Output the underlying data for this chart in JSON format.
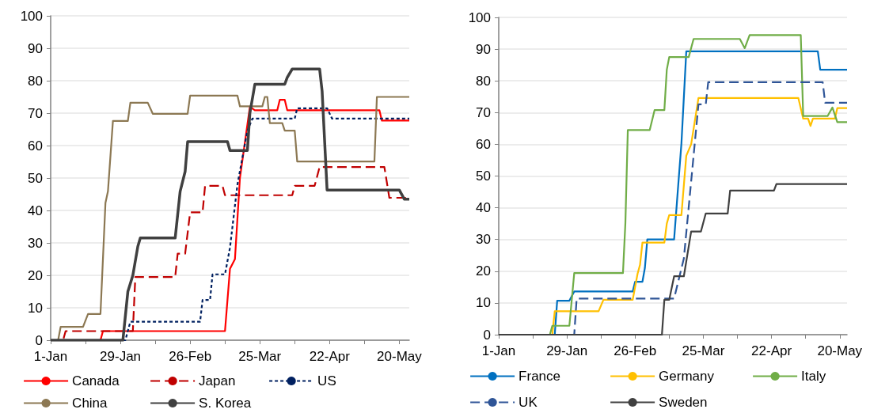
{
  "chart_data": [
    {
      "type": "line",
      "xlim": [
        "--01-01",
        "--05-24"
      ],
      "ylim": [
        0,
        100
      ],
      "xticks": [
        {
          "value": "--01-01",
          "label": "1-Jan"
        },
        {
          "value": "--01-15",
          "label": null
        },
        {
          "value": "--01-29",
          "label": "29-Jan"
        },
        {
          "value": "--02-12",
          "label": null
        },
        {
          "value": "--02-26",
          "label": "26-Feb"
        },
        {
          "value": "--03-11",
          "label": null
        },
        {
          "value": "--03-25",
          "label": "25-Mar"
        },
        {
          "value": "--04-08",
          "label": null
        },
        {
          "value": "--04-22",
          "label": "22-Apr"
        },
        {
          "value": "--05-06",
          "label": null
        },
        {
          "value": "--05-20",
          "label": "20-May"
        }
      ],
      "yticks": [
        0,
        10,
        20,
        30,
        40,
        50,
        60,
        70,
        80,
        90,
        100
      ],
      "grid": "y",
      "legend": "bottom",
      "marker": "none",
      "series": [
        {
          "name": "Canada",
          "color": "#ff0000",
          "line_style": "solid",
          "x": [
            "--01-01",
            "--01-21",
            "--01-22",
            "--03-11",
            "--03-13",
            "--03-15",
            "--03-17",
            "--03-19",
            "--03-21",
            "--03-23",
            "--04-01",
            "--04-02",
            "--04-04",
            "--04-05",
            "--05-12",
            "--05-13",
            "--05-24"
          ],
          "values": [
            0,
            0,
            2.8,
            2.8,
            22,
            25,
            50,
            61,
            72,
            70.9,
            70.9,
            74.1,
            74.1,
            70.9,
            70.9,
            67.7,
            67.7
          ]
        },
        {
          "name": "Japan",
          "color": "#c00000",
          "line_style": "dashed",
          "x": [
            "--01-01",
            "--01-06",
            "--01-07",
            "--02-03",
            "--02-04",
            "--02-20",
            "--02-21",
            "--02-24",
            "--02-26",
            "--03-02",
            "--03-03",
            "--03-10",
            "--03-11",
            "--04-07",
            "--04-08",
            "--04-16",
            "--04-18",
            "--05-14",
            "--05-16",
            "--05-24"
          ],
          "values": [
            0,
            0,
            2.8,
            2.8,
            19.5,
            19.5,
            26.7,
            26.7,
            39.4,
            39.4,
            47.6,
            47.6,
            44.7,
            44.7,
            47.6,
            47.6,
            53.4,
            53.4,
            43.9,
            43.9
          ]
        },
        {
          "name": "US",
          "color": "#002060",
          "line_style": "dotted",
          "x": [
            "--01-01",
            "--01-31",
            "--02-02",
            "--03-01",
            "--03-02",
            "--03-05",
            "--03-06",
            "--03-11",
            "--03-13",
            "--03-16",
            "--03-20",
            "--03-22",
            "--04-08",
            "--04-09",
            "--04-21",
            "--04-23",
            "--05-24"
          ],
          "values": [
            0,
            0,
            5.7,
            5.7,
            12.4,
            12.4,
            20.3,
            20.3,
            28.5,
            48,
            64.6,
            68.3,
            68.3,
            71.5,
            71.5,
            68.3,
            68.3
          ]
        },
        {
          "name": "China",
          "color": "#8c7853",
          "line_style": "solid",
          "x": [
            "--01-01",
            "--01-04",
            "--01-05",
            "--01-14",
            "--01-16",
            "--01-21",
            "--01-23",
            "--01-24",
            "--01-26",
            "--02-01",
            "--02-02",
            "--02-09",
            "--02-11",
            "--02-25",
            "--02-26",
            "--03-16",
            "--03-17",
            "--03-26",
            "--03-27",
            "--03-28",
            "--03-29",
            "--04-03",
            "--04-04",
            "--04-08",
            "--04-09",
            "--05-10",
            "--05-11",
            "--05-24"
          ],
          "values": [
            0,
            0,
            4.1,
            4.1,
            8.1,
            8.1,
            42.3,
            45.9,
            67.6,
            67.6,
            73.2,
            73.2,
            69.8,
            69.8,
            75.4,
            75.4,
            72.1,
            72.1,
            75,
            75,
            66.9,
            66.9,
            64.6,
            64.6,
            55.1,
            55.1,
            75,
            75
          ]
        },
        {
          "name": "S. Korea",
          "color": "#404040",
          "line_style": "solid",
          "x": [
            "--01-01",
            "--01-30",
            "--02-01",
            "--02-03",
            "--02-05",
            "--02-06",
            "--02-20",
            "--02-22",
            "--02-24",
            "--02-25",
            "--03-12",
            "--03-13",
            "--03-20",
            "--03-21",
            "--03-23",
            "--04-04",
            "--04-05",
            "--04-07",
            "--04-18",
            "--04-19",
            "--04-21",
            "--05-20",
            "--05-22",
            "--05-24"
          ],
          "values": [
            0,
            0,
            15,
            20,
            28.9,
            31.5,
            31.5,
            45.9,
            52,
            61.2,
            61.2,
            58.5,
            58.5,
            70,
            78.9,
            78.9,
            81,
            83.6,
            83.6,
            76.8,
            46.3,
            46.3,
            43.5,
            43.5
          ]
        }
      ]
    },
    {
      "type": "line",
      "xlim": [
        "--01-01",
        "--05-23"
      ],
      "ylim": [
        0,
        100
      ],
      "xticks": [
        {
          "value": "--01-01",
          "label": "1-Jan"
        },
        {
          "value": "--01-15",
          "label": null
        },
        {
          "value": "--01-29",
          "label": "29-Jan"
        },
        {
          "value": "--02-12",
          "label": null
        },
        {
          "value": "--02-26",
          "label": "26-Feb"
        },
        {
          "value": "--03-11",
          "label": null
        },
        {
          "value": "--03-25",
          "label": "25-Mar"
        },
        {
          "value": "--04-08",
          "label": null
        },
        {
          "value": "--04-22",
          "label": "22-Apr"
        },
        {
          "value": "--05-06",
          "label": null
        },
        {
          "value": "--05-20",
          "label": "20-May"
        }
      ],
      "yticks": [
        0,
        10,
        20,
        30,
        40,
        50,
        60,
        70,
        80,
        90,
        100
      ],
      "grid": "y",
      "legend": "bottom",
      "marker": "none",
      "series": [
        {
          "name": "France",
          "color": "#0070c0",
          "line_style": "solid",
          "x": [
            "--01-01",
            "--01-24",
            "--01-25",
            "--01-30",
            "--02-01",
            "--02-25",
            "--02-26",
            "--02-29",
            "--03-01",
            "--03-02",
            "--03-13",
            "--03-15",
            "--03-16",
            "--03-18",
            "--05-11",
            "--05-12",
            "--05-23"
          ],
          "values": [
            0,
            0,
            10.7,
            10.7,
            13.6,
            13.6,
            16.7,
            16.7,
            21,
            30,
            30,
            50.2,
            60.2,
            89.3,
            89.3,
            83.5,
            83.5
          ]
        },
        {
          "name": "Germany",
          "color": "#ffc000",
          "line_style": "solid",
          "x": [
            "--01-01",
            "--01-23",
            "--01-24",
            "--02-11",
            "--02-13",
            "--02-25",
            "--02-27",
            "--02-28",
            "--02-29",
            "--03-09",
            "--03-10",
            "--03-11",
            "--03-16",
            "--03-18",
            "--03-20",
            "--03-23",
            "--05-03",
            "--05-05",
            "--05-07",
            "--05-08",
            "--05-09",
            "--05-18",
            "--05-19",
            "--05-23"
          ],
          "values": [
            0,
            0,
            7.4,
            7.4,
            11,
            11,
            19.2,
            22,
            29,
            29,
            35,
            37.7,
            37.7,
            56.4,
            60,
            74.6,
            74.6,
            68.1,
            68.1,
            65.8,
            68.1,
            68.1,
            71.4,
            71.4
          ]
        },
        {
          "name": "Italy",
          "color": "#70ad47",
          "line_style": "solid",
          "x": [
            "--01-01",
            "--01-22",
            "--01-23",
            "--01-30",
            "--02-01",
            "--02-21",
            "--02-22",
            "--02-23",
            "--03-03",
            "--03-05",
            "--03-09",
            "--03-10",
            "--03-11",
            "--03-19",
            "--03-21",
            "--04-09",
            "--04-11",
            "--04-13",
            "--05-04",
            "--05-05",
            "--05-15",
            "--05-17",
            "--05-19",
            "--05-23"
          ],
          "values": [
            0,
            0,
            2.8,
            2.8,
            19.4,
            19.4,
            35.2,
            64.5,
            64.5,
            70.8,
            70.8,
            83.5,
            87.5,
            87.5,
            93.2,
            93.2,
            90.3,
            94.4,
            94.4,
            68.9,
            68.9,
            71.6,
            67,
            67
          ]
        },
        {
          "name": "UK",
          "color": "#2f5597",
          "line_style": "dashed",
          "x": [
            "--01-01",
            "--02-01",
            "--02-02",
            "--03-13",
            "--03-17",
            "--03-23",
            "--03-26",
            "--03-27",
            "--05-13",
            "--05-14",
            "--05-23"
          ],
          "values": [
            0,
            0,
            11.4,
            11.4,
            24,
            72.6,
            72.6,
            79.6,
            79.6,
            73.1,
            73.1
          ]
        },
        {
          "name": "Sweden",
          "color": "#404040",
          "line_style": "solid",
          "x": [
            "--01-01",
            "--03-08",
            "--03-09",
            "--03-11",
            "--03-13",
            "--03-17",
            "--03-20",
            "--03-24",
            "--03-26",
            "--04-04",
            "--04-05",
            "--04-23",
            "--04-24",
            "--05-23"
          ],
          "values": [
            0,
            0,
            11,
            11,
            18.4,
            18.4,
            32.5,
            32.5,
            38.2,
            38.2,
            45.4,
            45.4,
            47.5,
            47.5
          ]
        }
      ]
    }
  ]
}
